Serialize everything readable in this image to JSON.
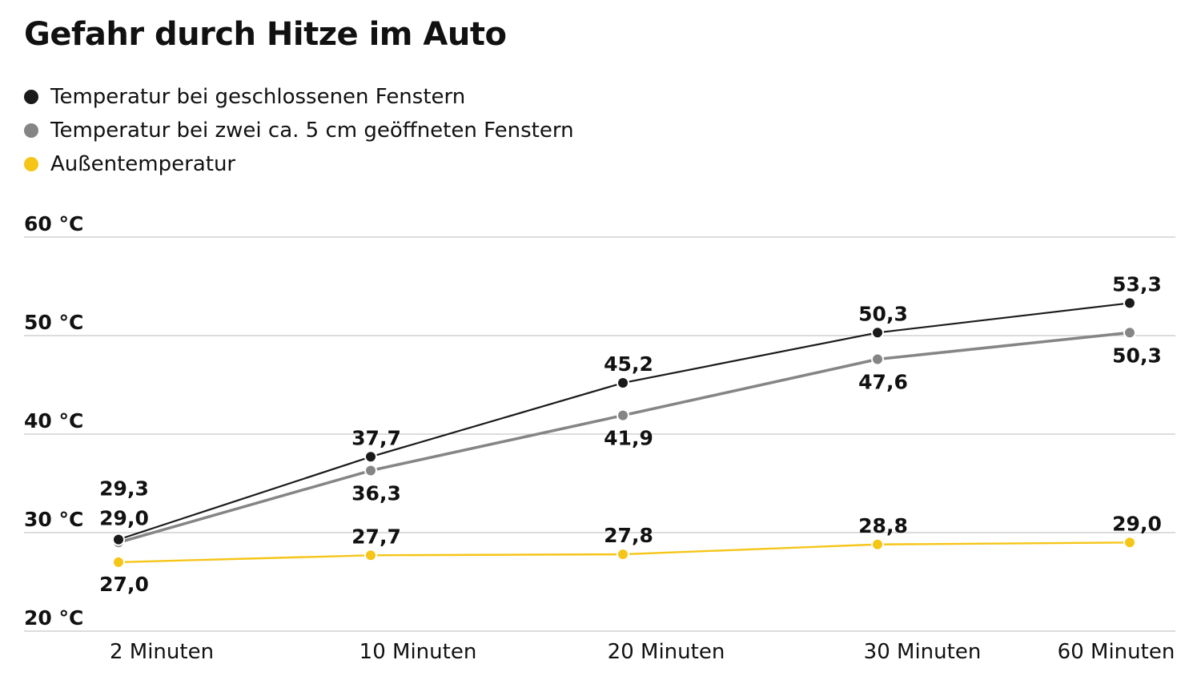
{
  "chart_data": {
    "type": "line",
    "title": "Gefahr durch Hitze im Auto",
    "categories": [
      "2 Minuten",
      "10 Minuten",
      "20 Minuten",
      "30 Minuten",
      "60 Minuten"
    ],
    "ylim": [
      20,
      60
    ],
    "yticks": [
      {
        "value": 60,
        "label": "60 °C"
      },
      {
        "value": 50,
        "label": "50 °C"
      },
      {
        "value": 40,
        "label": "40 °C"
      },
      {
        "value": 30,
        "label": "30 °C"
      },
      {
        "value": 20,
        "label": "20 °C"
      }
    ],
    "grid": true,
    "legend_position": "top-left",
    "series": [
      {
        "name": "Temperatur bei geschlossenen Fenstern",
        "color": "#1a1a1a",
        "values": [
          29.3,
          37.7,
          45.2,
          50.3,
          53.3
        ],
        "labels": [
          "29,3",
          "37,7",
          "45,2",
          "50,3",
          "53,3"
        ],
        "label_position": "above"
      },
      {
        "name": "Temperatur bei zwei ca. 5 cm geöffneten Fenstern",
        "color": "#858585",
        "values": [
          29.0,
          36.3,
          41.9,
          47.6,
          50.3
        ],
        "labels": [
          "29,0",
          "36,3",
          "41,9",
          "47,6",
          "50,3"
        ],
        "label_position": "below"
      },
      {
        "name": "Außentemperatur",
        "color": "#f5c518",
        "values": [
          27.0,
          27.7,
          27.8,
          28.8,
          29.0
        ],
        "labels": [
          "27,0",
          "27,7",
          "27,8",
          "28,8",
          "29,0"
        ],
        "label_position": "above"
      }
    ]
  }
}
